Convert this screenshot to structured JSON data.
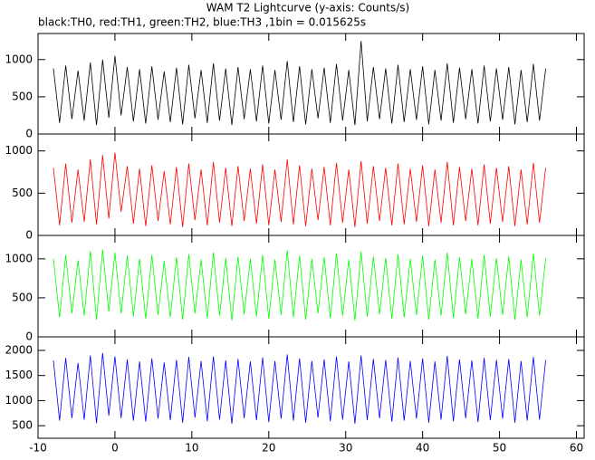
{
  "chart_data": [
    {
      "type": "line",
      "title": "WAM T2 Lightcurve (y-axis: Counts/s)",
      "subtitle": "black:TH0, red:TH1, green:TH2, blue:TH3 ,1bin = 0.015625s",
      "color": "#000000",
      "ylim": [
        0,
        1350
      ],
      "yticks": [
        0,
        500,
        1000
      ],
      "x": [
        -8,
        -7.2,
        -6.4,
        -5.6,
        -4.8,
        -4,
        -3.2,
        -2.4,
        -1.6,
        -0.8,
        0,
        0.8,
        1.6,
        2.4,
        3.2,
        4,
        4.8,
        5.6,
        6.4,
        7.2,
        8,
        8.8,
        9.6,
        10.4,
        11.2,
        12,
        12.8,
        13.6,
        14.4,
        15.2,
        16,
        16.8,
        17.6,
        18.4,
        19.2,
        20,
        20.8,
        21.6,
        22.4,
        23.2,
        24,
        24.8,
        25.6,
        26.4,
        27.2,
        28,
        28.8,
        29.6,
        30.4,
        31.2,
        32,
        32.8,
        33.6,
        34.4,
        35.2,
        36,
        36.8,
        37.6,
        38.4,
        39.2,
        40,
        40.8,
        41.6,
        42.4,
        43.2,
        44,
        44.8,
        45.6,
        46.4,
        47.2,
        48,
        48.8,
        49.6,
        50.4,
        51.2,
        52,
        52.8,
        53.6,
        54.4,
        55.2,
        56
      ],
      "values": [
        880,
        150,
        920,
        200,
        850,
        180,
        960,
        120,
        1000,
        220,
        1050,
        250,
        900,
        170,
        870,
        140,
        910,
        190,
        840,
        160,
        890,
        130,
        930,
        210,
        860,
        150,
        950,
        180,
        880,
        120,
        900,
        200,
        870,
        170,
        920,
        140,
        860,
        190,
        980,
        160,
        910,
        130,
        870,
        210,
        890,
        150,
        940,
        180,
        860,
        120,
        1250,
        170,
        900,
        200,
        880,
        140,
        930,
        160,
        870,
        190,
        910,
        130,
        860,
        180,
        950,
        150,
        890,
        200,
        870,
        140,
        920,
        170,
        880,
        190,
        900,
        130,
        860,
        160,
        940,
        180,
        880
      ]
    },
    {
      "type": "line",
      "color": "#ff0000",
      "ylim": [
        0,
        1200
      ],
      "yticks": [
        0,
        500,
        1000
      ],
      "x": [
        -8,
        -7.2,
        -6.4,
        -5.6,
        -4.8,
        -4,
        -3.2,
        -2.4,
        -1.6,
        -0.8,
        0,
        0.8,
        1.6,
        2.4,
        3.2,
        4,
        4.8,
        5.6,
        6.4,
        7.2,
        8,
        8.8,
        9.6,
        10.4,
        11.2,
        12,
        12.8,
        13.6,
        14.4,
        15.2,
        16,
        16.8,
        17.6,
        18.4,
        19.2,
        20,
        20.8,
        21.6,
        22.4,
        23.2,
        24,
        24.8,
        25.6,
        26.4,
        27.2,
        28,
        28.8,
        29.6,
        30.4,
        31.2,
        32,
        32.8,
        33.6,
        34.4,
        35.2,
        36,
        36.8,
        37.6,
        38.4,
        39.2,
        40,
        40.8,
        41.6,
        42.4,
        43.2,
        44,
        44.8,
        45.6,
        46.4,
        47.2,
        48,
        48.8,
        49.6,
        50.4,
        51.2,
        52,
        52.8,
        53.6,
        54.4,
        55.2,
        56
      ],
      "values": [
        800,
        120,
        850,
        150,
        780,
        160,
        900,
        130,
        950,
        200,
        980,
        280,
        820,
        140,
        790,
        110,
        830,
        170,
        760,
        130,
        810,
        100,
        850,
        180,
        780,
        120,
        870,
        150,
        800,
        110,
        820,
        170,
        790,
        140,
        840,
        120,
        780,
        160,
        900,
        130,
        830,
        110,
        790,
        180,
        810,
        120,
        860,
        150,
        780,
        100,
        880,
        140,
        820,
        170,
        800,
        120,
        850,
        130,
        790,
        160,
        830,
        110,
        780,
        150,
        870,
        120,
        810,
        170,
        790,
        120,
        840,
        140,
        800,
        160,
        820,
        110,
        780,
        130,
        860,
        150,
        800
      ]
    },
    {
      "type": "line",
      "color": "#00ff00",
      "ylim": [
        0,
        1300
      ],
      "yticks": [
        0,
        500,
        1000
      ],
      "x": [
        -8,
        -7.2,
        -6.4,
        -5.6,
        -4.8,
        -4,
        -3.2,
        -2.4,
        -1.6,
        -0.8,
        0,
        0.8,
        1.6,
        2.4,
        3.2,
        4,
        4.8,
        5.6,
        6.4,
        7.2,
        8,
        8.8,
        9.6,
        10.4,
        11.2,
        12,
        12.8,
        13.6,
        14.4,
        15.2,
        16,
        16.8,
        17.6,
        18.4,
        19.2,
        20,
        20.8,
        21.6,
        22.4,
        23.2,
        24,
        24.8,
        25.6,
        26.4,
        27.2,
        28,
        28.8,
        29.6,
        30.4,
        31.2,
        32,
        32.8,
        33.6,
        34.4,
        35.2,
        36,
        36.8,
        37.6,
        38.4,
        39.2,
        40,
        40.8,
        41.6,
        42.4,
        43.2,
        44,
        44.8,
        45.6,
        46.4,
        47.2,
        48,
        48.8,
        49.6,
        50.4,
        51.2,
        52,
        52.8,
        53.6,
        54.4,
        55.2,
        56
      ],
      "values": [
        1000,
        250,
        1050,
        300,
        980,
        270,
        1100,
        220,
        1120,
        320,
        1080,
        300,
        1040,
        260,
        1000,
        230,
        1050,
        280,
        970,
        250,
        1020,
        220,
        1060,
        300,
        990,
        240,
        1080,
        270,
        1010,
        210,
        1030,
        290,
        1000,
        260,
        1050,
        230,
        990,
        280,
        1110,
        250,
        1040,
        220,
        1000,
        300,
        1020,
        240,
        1070,
        270,
        990,
        210,
        1090,
        260,
        1030,
        290,
        1010,
        230,
        1060,
        250,
        1000,
        280,
        1040,
        220,
        990,
        270,
        1080,
        240,
        1020,
        290,
        1000,
        230,
        1050,
        260,
        1010,
        280,
        1030,
        220,
        990,
        250,
        1070,
        270,
        1010
      ]
    },
    {
      "type": "line",
      "color": "#0000ff",
      "ylim": [
        250,
        2270
      ],
      "yticks": [
        500,
        1000,
        1500,
        2000
      ],
      "xlim": [
        -10,
        61
      ],
      "xticks": [
        -10,
        0,
        10,
        20,
        30,
        40,
        50,
        60
      ],
      "x": [
        -8,
        -7.2,
        -6.4,
        -5.6,
        -4.8,
        -4,
        -3.2,
        -2.4,
        -1.6,
        -0.8,
        0,
        0.8,
        1.6,
        2.4,
        3.2,
        4,
        4.8,
        5.6,
        6.4,
        7.2,
        8,
        8.8,
        9.6,
        10.4,
        11.2,
        12,
        12.8,
        13.6,
        14.4,
        15.2,
        16,
        16.8,
        17.6,
        18.4,
        19.2,
        20,
        20.8,
        21.6,
        22.4,
        23.2,
        24,
        24.8,
        25.6,
        26.4,
        27.2,
        28,
        28.8,
        29.6,
        30.4,
        31.2,
        32,
        32.8,
        33.6,
        34.4,
        35.2,
        36,
        36.8,
        37.6,
        38.4,
        39.2,
        40,
        40.8,
        41.6,
        42.4,
        43.2,
        44,
        44.8,
        45.6,
        46.4,
        47.2,
        48,
        48.8,
        49.6,
        50.4,
        51.2,
        52,
        52.8,
        53.6,
        54.4,
        55.2,
        56
      ],
      "values": [
        1800,
        600,
        1850,
        650,
        1750,
        620,
        1900,
        550,
        1950,
        700,
        1880,
        650,
        1820,
        600,
        1780,
        580,
        1840,
        640,
        1760,
        610,
        1810,
        560,
        1870,
        660,
        1790,
        590,
        1880,
        620,
        1800,
        540,
        1830,
        650,
        1780,
        610,
        1860,
        570,
        1790,
        640,
        1920,
        600,
        1840,
        560,
        1790,
        660,
        1820,
        590,
        1880,
        620,
        1780,
        540,
        1900,
        610,
        1830,
        650,
        1810,
        580,
        1860,
        600,
        1790,
        640,
        1840,
        560,
        1780,
        620,
        1890,
        590,
        1820,
        650,
        1800,
        570,
        1850,
        610,
        1810,
        640,
        1830,
        560,
        1790,
        600,
        1870,
        620,
        1810
      ]
    }
  ]
}
